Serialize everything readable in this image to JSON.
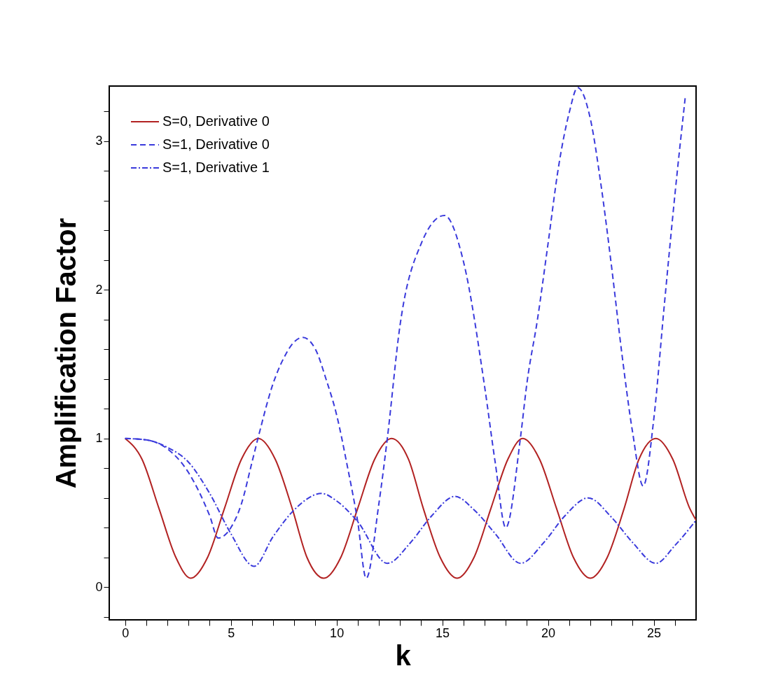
{
  "chart_data": {
    "type": "line",
    "xlabel": "k",
    "ylabel": "Amplification Factor",
    "xlim": [
      -0.75,
      27
    ],
    "ylim": [
      -0.22,
      3.37
    ],
    "xticks": [
      0,
      {
        "value": 1,
        "label": null
      },
      {
        "value": 2,
        "label": null
      },
      {
        "value": 3,
        "label": null
      },
      {
        "value": 4,
        "label": null
      },
      5,
      {
        "value": 6,
        "label": null
      },
      {
        "value": 7,
        "label": null
      },
      {
        "value": 8,
        "label": null
      },
      {
        "value": 9,
        "label": null
      },
      10,
      {
        "value": 11,
        "label": null
      },
      {
        "value": 12,
        "label": null
      },
      {
        "value": 13,
        "label": null
      },
      {
        "value": 14,
        "label": null
      },
      15,
      {
        "value": 16,
        "label": null
      },
      {
        "value": 17,
        "label": null
      },
      {
        "value": 18,
        "label": null
      },
      {
        "value": 19,
        "label": null
      },
      20,
      {
        "value": 21,
        "label": null
      },
      {
        "value": 22,
        "label": null
      },
      {
        "value": 23,
        "label": null
      },
      {
        "value": 24,
        "label": null
      },
      25,
      {
        "value": 26,
        "label": null
      }
    ],
    "yticks": [
      {
        "value": -0.2,
        "label": null
      },
      0,
      {
        "value": 0.2,
        "label": null
      },
      {
        "value": 0.4,
        "label": null
      },
      {
        "value": 0.6,
        "label": null
      },
      {
        "value": 0.8,
        "label": null
      },
      1,
      {
        "value": 1.2,
        "label": null
      },
      {
        "value": 1.4,
        "label": null
      },
      {
        "value": 1.6,
        "label": null
      },
      {
        "value": 1.8,
        "label": null
      },
      2,
      {
        "value": 2.2,
        "label": null
      },
      {
        "value": 2.4,
        "label": null
      },
      {
        "value": 2.6,
        "label": null
      },
      {
        "value": 2.8,
        "label": null
      },
      3,
      {
        "value": 3.2,
        "label": null
      }
    ],
    "grid": false,
    "legend": "top left",
    "marker": "none",
    "series": [
      {
        "name": "S=0, Derivative 0",
        "color": "#b22222",
        "line_style": "solid",
        "x": [
          0,
          0.8,
          1.6,
          2.4,
          3.1,
          3.9,
          4.7,
          5.5,
          6.3,
          7.1,
          7.9,
          8.6,
          9.4,
          10.2,
          11.0,
          11.8,
          12.6,
          13.4,
          14.1,
          14.9,
          15.7,
          16.5,
          17.3,
          18.1,
          18.8,
          19.6,
          20.4,
          21.2,
          22.0,
          22.8,
          23.6,
          24.3,
          25.1,
          25.9,
          26.7,
          27
        ],
        "values": [
          1,
          0.86,
          0.53,
          0.2,
          0.06,
          0.2,
          0.53,
          0.86,
          1,
          0.86,
          0.53,
          0.2,
          0.06,
          0.2,
          0.53,
          0.86,
          1,
          0.86,
          0.53,
          0.2,
          0.06,
          0.2,
          0.53,
          0.86,
          1,
          0.86,
          0.53,
          0.2,
          0.06,
          0.2,
          0.53,
          0.86,
          1,
          0.86,
          0.53,
          0.45
        ]
      },
      {
        "name": "S=1, Derivative 0",
        "color": "#3a3adc",
        "line_style": "dashed",
        "x": [
          0,
          1,
          2,
          3,
          4,
          4.4,
          5,
          5.5,
          6,
          6.3,
          7,
          7.5,
          8,
          8.4,
          9,
          9.5,
          10,
          10.5,
          11,
          11.4,
          12,
          12.4,
          13,
          14,
          15.1,
          16,
          17,
          17.5,
          18,
          18.7,
          19,
          19.5,
          20,
          20.5,
          21,
          21.4,
          22,
          22.5,
          23,
          23.5,
          24,
          24.5,
          25,
          25.5,
          26,
          26.5
        ],
        "values": [
          1,
          0.99,
          0.93,
          0.77,
          0.48,
          0.33,
          0.4,
          0.56,
          0.84,
          1.01,
          1.37,
          1.54,
          1.65,
          1.68,
          1.6,
          1.4,
          1.16,
          0.82,
          0.44,
          0.06,
          0.56,
          1.0,
          1.76,
          2.31,
          2.5,
          2.19,
          1.35,
          0.84,
          0.4,
          1.01,
          1.37,
          1.8,
          2.31,
          2.83,
          3.19,
          3.36,
          3.15,
          2.71,
          2.16,
          1.56,
          1.04,
          0.68,
          1.13,
          1.9,
          2.64,
          3.31
        ]
      },
      {
        "name": "S=1, Derivative 1",
        "color": "#3a3adc",
        "line_style": "dashdot",
        "x": [
          0,
          1,
          2,
          3,
          4,
          5,
          6.1,
          7,
          8,
          9.3,
          10,
          11,
          12.4,
          13.5,
          14.5,
          15.6,
          16.5,
          17.5,
          18.7,
          19.8,
          20.8,
          21.9,
          23,
          24,
          25.1,
          26,
          27
        ],
        "values": [
          1,
          0.99,
          0.94,
          0.84,
          0.63,
          0.36,
          0.14,
          0.34,
          0.52,
          0.63,
          0.58,
          0.44,
          0.16,
          0.3,
          0.48,
          0.61,
          0.52,
          0.36,
          0.16,
          0.3,
          0.48,
          0.6,
          0.47,
          0.3,
          0.16,
          0.28,
          0.45
        ]
      }
    ]
  }
}
